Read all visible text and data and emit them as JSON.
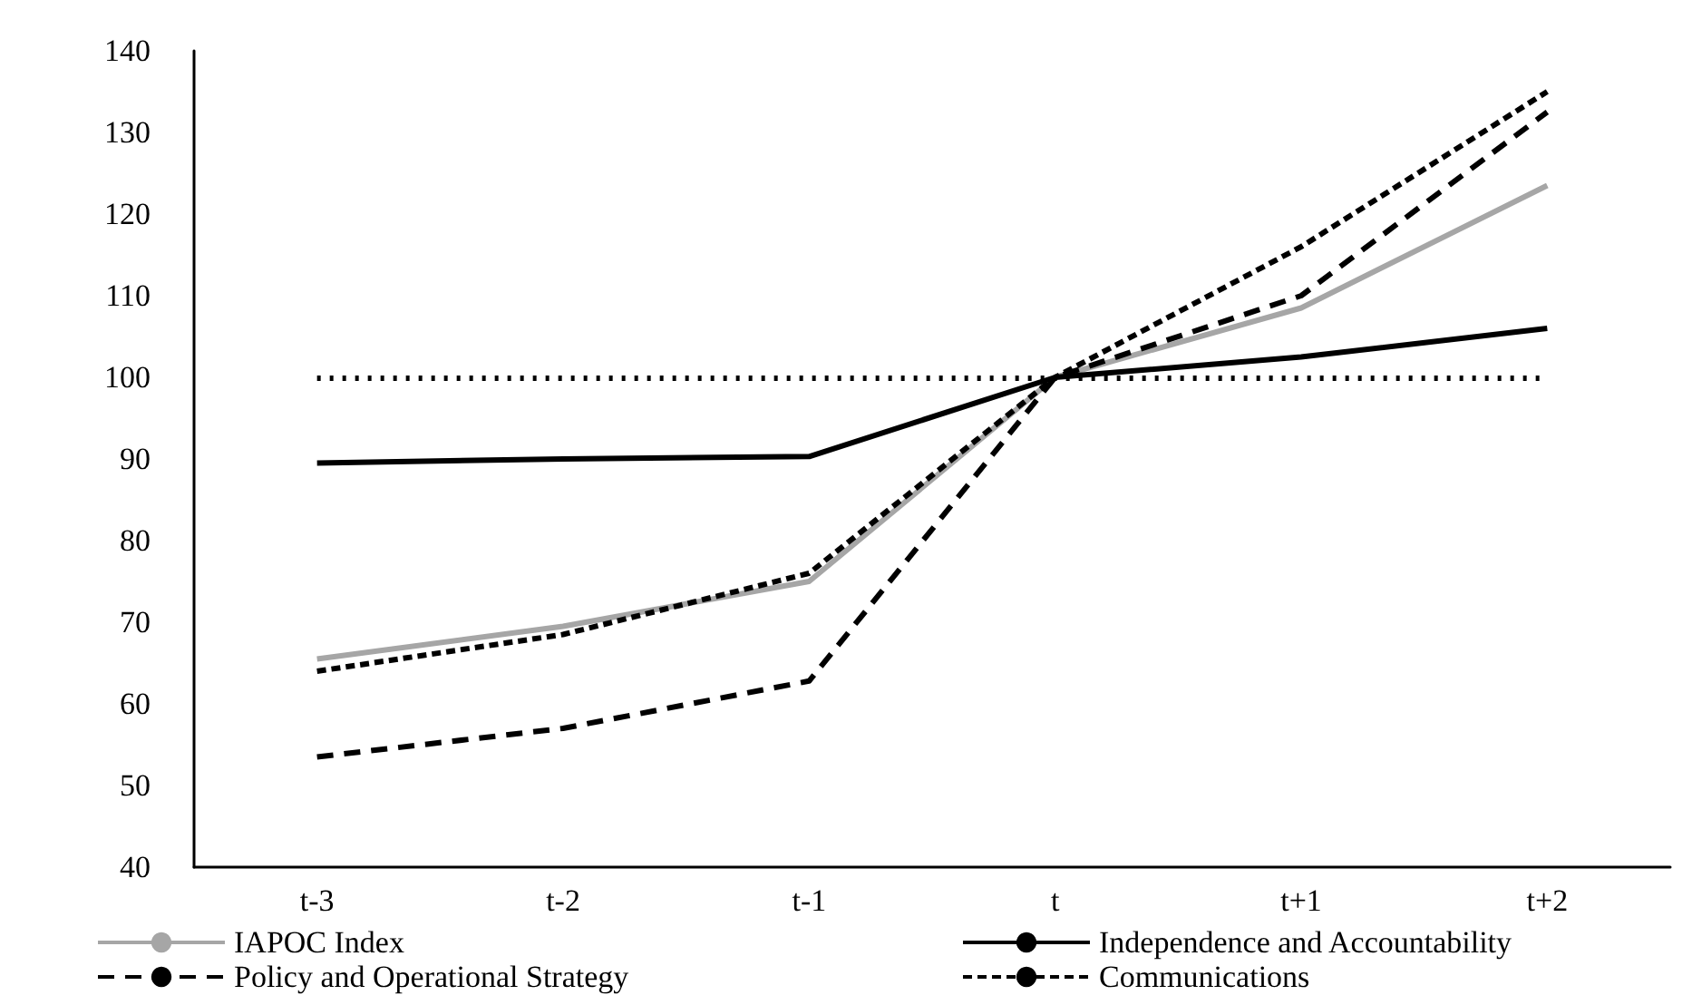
{
  "chart_data": {
    "type": "line",
    "categories": [
      "t-3",
      "t-2",
      "t-1",
      "t",
      "t+1",
      "t+2"
    ],
    "ylim": [
      40,
      140
    ],
    "yticks": [
      40,
      50,
      60,
      70,
      80,
      90,
      100,
      110,
      120,
      130,
      140
    ],
    "grid": false,
    "legend": "bottom",
    "marker": "none",
    "series": [
      {
        "name": "IAPOC Index",
        "color": "#a6a6a6",
        "line_style": "solid",
        "values": [
          65.5,
          69.5,
          75,
          100,
          108.5,
          123.5
        ]
      },
      {
        "name": "Independence and Accountability",
        "color": "#000000",
        "line_style": "solid",
        "values": [
          89.5,
          90,
          90.3,
          100,
          102.5,
          106
        ]
      },
      {
        "name": "Policy and Operational Strategy",
        "color": "#000000",
        "line_style": "dashed",
        "values": [
          53.5,
          57,
          62.8,
          100,
          110,
          132.5
        ]
      },
      {
        "name": "Communications",
        "color": "#000000",
        "line_style": "dashed",
        "values": [
          64,
          68.5,
          76,
          100,
          116,
          135
        ]
      }
    ],
    "ref_lines": [
      {
        "axis": "y",
        "value": 100,
        "color": "#000000",
        "line_style": "dotted"
      }
    ]
  }
}
